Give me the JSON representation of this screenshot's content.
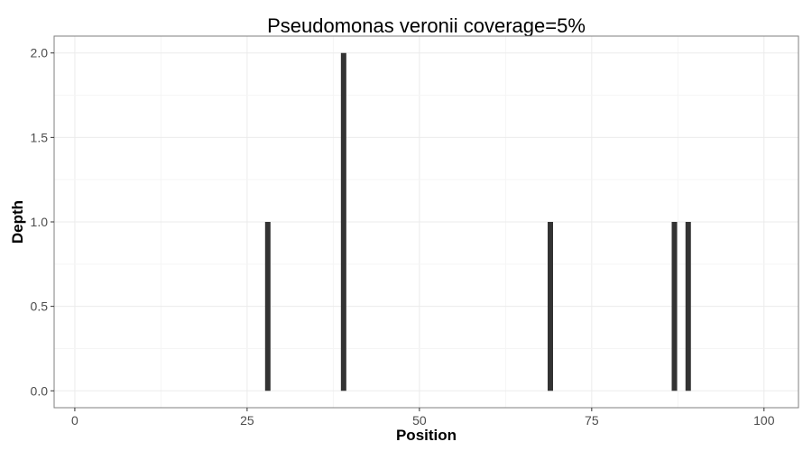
{
  "chart_data": {
    "type": "bar",
    "title": "Pseudomonas veronii coverage=5%",
    "xlabel": "Position",
    "ylabel": "Depth",
    "xlim": [
      -3,
      105
    ],
    "ylim": [
      -0.1,
      2.1
    ],
    "x_ticks": [
      0,
      25,
      50,
      75,
      100
    ],
    "x_tick_labels": [
      "0",
      "25",
      "50",
      "75",
      "100"
    ],
    "y_ticks": [
      0.0,
      0.5,
      1.0,
      1.5,
      2.0
    ],
    "y_tick_labels": [
      "0.0",
      "0.5",
      "1.0",
      "1.5",
      "2.0"
    ],
    "grid": true,
    "x": [
      28,
      39,
      69,
      87,
      89
    ],
    "values": [
      1,
      2,
      1,
      1,
      1
    ],
    "bar_color": "#333333",
    "panel_border_color": "#7f7f7f",
    "grid_color": "#ebebeb"
  }
}
